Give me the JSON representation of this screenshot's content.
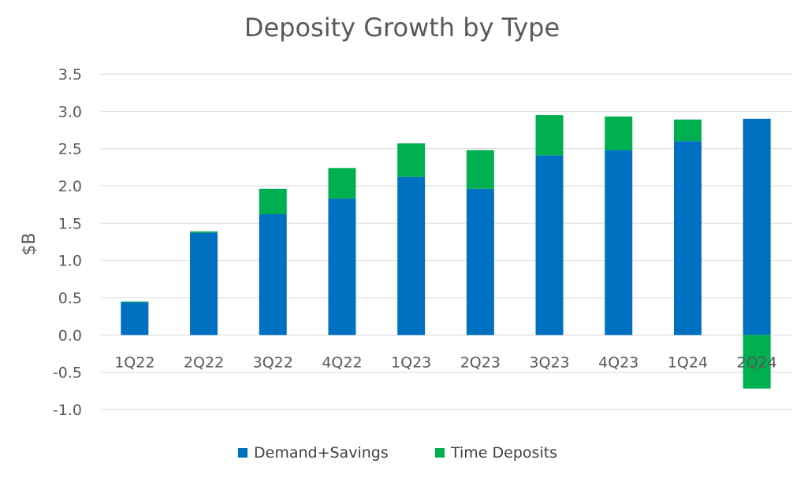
{
  "chart_data": {
    "type": "bar",
    "stacked": true,
    "title": "Deposity Growth by Type",
    "xlabel": "",
    "ylabel": "$B",
    "ylim": [
      -1.0,
      3.5
    ],
    "yticks": [
      -1.0,
      -0.5,
      0.0,
      0.5,
      1.0,
      1.5,
      2.0,
      2.5,
      3.0,
      3.5
    ],
    "ytick_labels": [
      "-1.0",
      "-0.5",
      "0.0",
      "0.5",
      "1.0",
      "1.5",
      "2.0",
      "2.5",
      "3.0",
      "3.5"
    ],
    "grid": true,
    "legend_position": "bottom",
    "categories": [
      "1Q22",
      "2Q22",
      "3Q22",
      "4Q22",
      "1Q23",
      "2Q23",
      "3Q23",
      "4Q23",
      "1Q24",
      "2Q24"
    ],
    "series": [
      {
        "name": "Demand+Savings",
        "color": "#0070c0",
        "values": [
          0.44,
          1.37,
          1.62,
          1.83,
          2.12,
          1.96,
          2.41,
          2.48,
          2.6,
          2.9
        ]
      },
      {
        "name": "Time Deposits",
        "color": "#00b050",
        "values": [
          0.01,
          0.02,
          0.34,
          0.41,
          0.45,
          0.52,
          0.54,
          0.45,
          0.29,
          -0.72
        ]
      }
    ]
  }
}
